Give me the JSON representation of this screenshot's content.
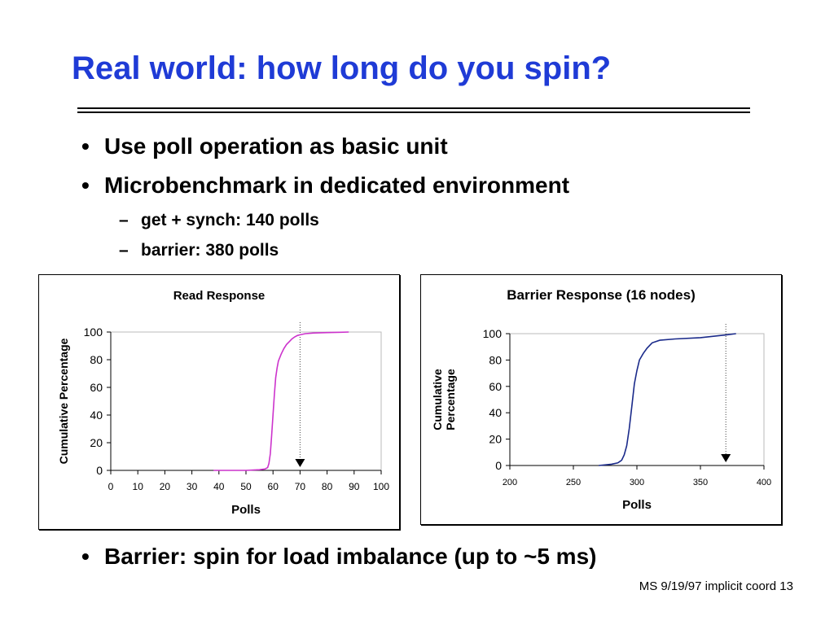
{
  "slide": {
    "title": "Real world: how long do you spin?",
    "bullets": [
      "Use poll operation as basic unit",
      "Microbenchmark in dedicated environment"
    ],
    "sub_bullets": [
      "get + synch: 140 polls",
      "barrier: 380 polls"
    ],
    "bottom_bullet": "Barrier: spin for load imbalance (up to ~5 ms)",
    "bullet_glyph": "•",
    "dash_glyph": "–",
    "footer": "MS 9/19/97  implicit coord 13",
    "colors": {
      "title": "#1f3bd6",
      "read_series": "#cc33cc",
      "barrier_series": "#1a2a8a"
    }
  },
  "chart_data": [
    {
      "type": "line",
      "title": "Read Response",
      "xlabel": "Polls",
      "ylabel": "Cumulative Percentage",
      "xlim": [
        0,
        100
      ],
      "ylim": [
        0,
        100
      ],
      "xticks": [
        0,
        10,
        20,
        30,
        40,
        50,
        60,
        70,
        80,
        90,
        100
      ],
      "yticks": [
        0,
        20,
        40,
        60,
        80,
        100
      ],
      "grid": false,
      "marker_x": 70,
      "series": [
        {
          "color": "#cc33cc",
          "x": [
            38,
            50,
            55,
            57,
            58,
            58.5,
            59,
            59.5,
            60,
            60.5,
            61,
            61.5,
            62,
            63,
            64,
            65,
            66,
            67,
            68,
            69,
            70,
            72,
            75,
            80,
            85,
            88
          ],
          "y": [
            0,
            0,
            0.5,
            1,
            2,
            5,
            12,
            25,
            40,
            55,
            67,
            74,
            79,
            84,
            88,
            91,
            93,
            95,
            96.5,
            97.5,
            98,
            98.8,
            99.3,
            99.6,
            99.8,
            100
          ]
        }
      ]
    },
    {
      "type": "line",
      "title": "Barrier Response (16 nodes)",
      "xlabel": "Polls",
      "ylabel": "Cumulative\nPercentage",
      "xlim": [
        200,
        400
      ],
      "ylim": [
        0,
        100
      ],
      "xticks": [
        200,
        250,
        300,
        350,
        400
      ],
      "yticks": [
        0,
        20,
        40,
        60,
        80,
        100
      ],
      "grid": false,
      "marker_x": 370,
      "series": [
        {
          "color": "#1a2a8a",
          "x": [
            270,
            280,
            285,
            288,
            290,
            292,
            294,
            296,
            298,
            300,
            302,
            305,
            308,
            312,
            318,
            330,
            350,
            370,
            378
          ],
          "y": [
            0,
            1,
            2,
            4,
            8,
            15,
            28,
            45,
            62,
            72,
            80,
            85,
            89,
            93,
            95,
            96,
            97,
            99,
            100
          ]
        }
      ]
    }
  ]
}
